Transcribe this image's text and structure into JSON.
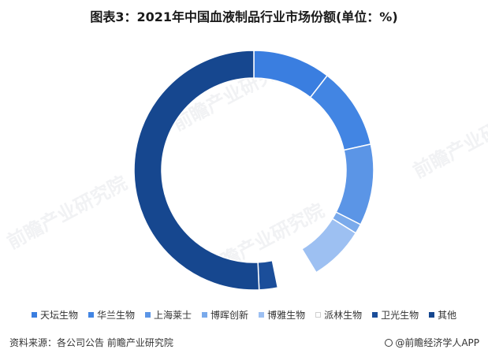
{
  "title": "图表3：2021年中国血液制品行业市场份额(单位：%)",
  "chart_data": {
    "type": "pie",
    "variant": "donut",
    "categories": [
      "天坛生物",
      "华兰生物",
      "上海莱士",
      "博晖创新",
      "博雅生物",
      "派林生物",
      "卫光生物",
      "其他"
    ],
    "values": [
      10.5,
      11.0,
      11.0,
      1.3,
      7.5,
      5.5,
      2.5,
      50.7
    ],
    "colors": [
      "#3a7ee0",
      "#4285e3",
      "#5b95e6",
      "#7aaaeb",
      "#9dc0f2",
      "#ffffff",
      "#1b4e9a",
      "#16478f"
    ],
    "legend_position": "bottom"
  },
  "watermark": "前瞻产业研究院",
  "footer": {
    "source": "资料来源：各公司公告 前瞻产业研究院",
    "brand": "@前瞻经济学人APP"
  }
}
